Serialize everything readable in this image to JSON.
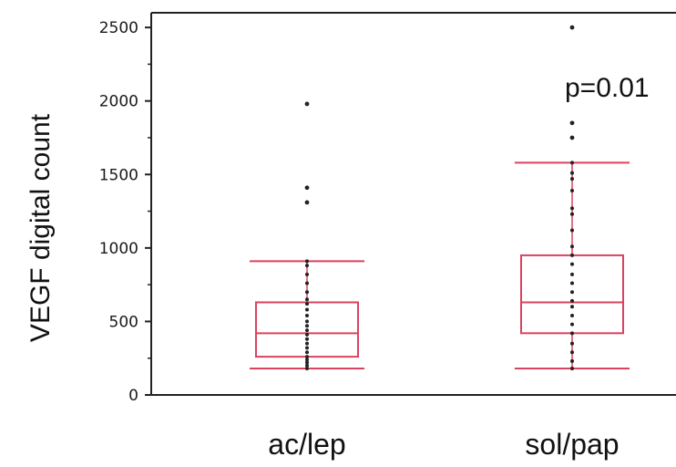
{
  "chart_data": {
    "type": "box",
    "ylabel": "VEGF digital count",
    "ylim": [
      0,
      2600
    ],
    "yticks": [
      0,
      500,
      1000,
      1500,
      2000,
      2500
    ],
    "categories": [
      "ac/lep",
      "sol/pap"
    ],
    "annotation": "p=0.01",
    "box_color": "#d9435f",
    "point_color": "#222222",
    "groups": [
      {
        "category": "ac/lep",
        "whisker_low": 180,
        "q1": 260,
        "median": 420,
        "q3": 630,
        "whisker_high": 910,
        "outliers": [
          1310,
          1410,
          1980
        ],
        "points": [
          180,
          200,
          220,
          240,
          260,
          290,
          320,
          350,
          380,
          410,
          440,
          470,
          500,
          540,
          580,
          620,
          650,
          700,
          760,
          820,
          880,
          910
        ]
      },
      {
        "category": "sol/pap",
        "whisker_low": 180,
        "q1": 420,
        "median": 630,
        "q3": 950,
        "whisker_high": 1580,
        "outliers": [
          1750,
          1850,
          2500
        ],
        "points": [
          180,
          230,
          290,
          350,
          420,
          480,
          540,
          600,
          640,
          700,
          760,
          820,
          890,
          950,
          1010,
          1120,
          1230,
          1270,
          1390,
          1470,
          1510,
          1580
        ]
      }
    ]
  }
}
